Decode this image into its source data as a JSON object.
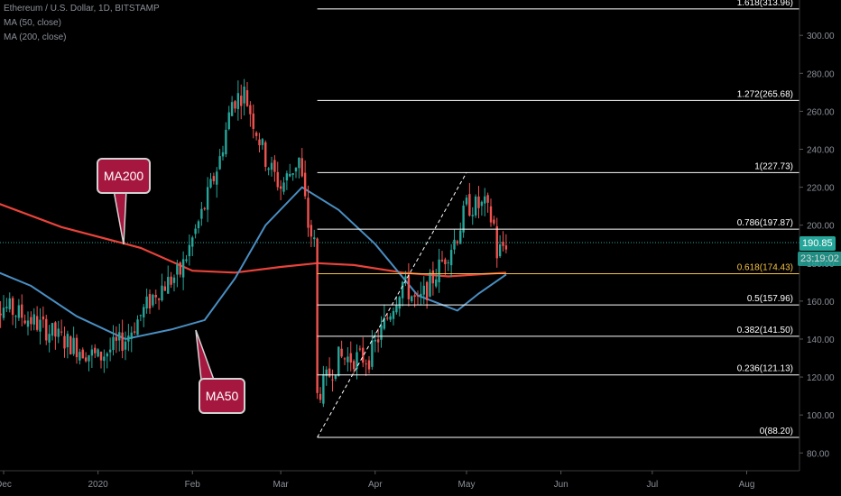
{
  "legend": {
    "symbol": "Ethereum / U.S. Dollar, 1D, BITSTAMP",
    "ma50": "MA (50, close)",
    "ma200": "MA (200, close)"
  },
  "callouts": {
    "ma200": "MA200",
    "ma50": "MA50"
  },
  "price_tags": {
    "last": "190.85",
    "countdown": "23:19:02"
  },
  "colors": {
    "background": "#000000",
    "candle_up": "#26a69a",
    "candle_down": "#ef5350",
    "ma50": "#4a8ec2",
    "ma200": "#e8433a",
    "fib_line": "#ffffff",
    "fib_highlight": "#f5c242",
    "last_price": "#26a69a",
    "callout_bg": "#a6173f"
  },
  "chart_data": {
    "type": "candlestick",
    "title": "Ethereum / U.S. Dollar, 1D, BITSTAMP",
    "y_axis": {
      "ticks": [
        80,
        100,
        120,
        140,
        160,
        180,
        200,
        220,
        240,
        260,
        280,
        300
      ],
      "tick_labels": [
        "80.00",
        "100.00",
        "120.00",
        "140.00",
        "160.00",
        "180.00",
        "200.00",
        "220.00",
        "240.00",
        "260.00",
        "280.00",
        "300.00"
      ],
      "ylim": [
        76,
        320
      ]
    },
    "x_axis": {
      "labels": [
        "Dec",
        "2020",
        "Feb",
        "Mar",
        "Apr",
        "May",
        "Jun",
        "Jul",
        "Aug"
      ],
      "dates": [
        "2019-12-01",
        "2020-01-01",
        "2020-02-01",
        "2020-03-01",
        "2020-04-01",
        "2020-05-01",
        "2020-06-01",
        "2020-07-01",
        "2020-08-01"
      ]
    },
    "fibonacci": [
      {
        "label": "0(88.20)",
        "value": 88.2
      },
      {
        "label": "0.236(121.13)",
        "value": 121.13
      },
      {
        "label": "0.382(141.50)",
        "value": 141.5
      },
      {
        "label": "0.5(157.96)",
        "value": 157.96
      },
      {
        "label": "0.618(174.43)",
        "value": 174.43,
        "highlight": true
      },
      {
        "label": "0.786(197.87)",
        "value": 197.87
      },
      {
        "label": "1(227.73)",
        "value": 227.73
      },
      {
        "label": "1.272(265.68)",
        "value": 265.68
      },
      {
        "label": "1.618(313.96)",
        "value": 313.96
      }
    ],
    "fib_start_date": "2020-03-13",
    "trend_line": [
      {
        "date": "2020-03-13",
        "price": 88.2
      },
      {
        "date": "2020-05-01",
        "price": 227.73
      }
    ],
    "last_price": 190.85,
    "ma50": [
      {
        "date": "2019-11-25",
        "price": 178
      },
      {
        "date": "2019-12-10",
        "price": 168
      },
      {
        "date": "2019-12-25",
        "price": 152
      },
      {
        "date": "2020-01-10",
        "price": 140
      },
      {
        "date": "2020-01-25",
        "price": 145
      },
      {
        "date": "2020-02-05",
        "price": 150
      },
      {
        "date": "2020-02-15",
        "price": 172
      },
      {
        "date": "2020-02-25",
        "price": 200
      },
      {
        "date": "2020-03-08",
        "price": 220
      },
      {
        "date": "2020-03-20",
        "price": 208
      },
      {
        "date": "2020-04-01",
        "price": 190
      },
      {
        "date": "2020-04-15",
        "price": 163
      },
      {
        "date": "2020-04-28",
        "price": 155
      },
      {
        "date": "2020-05-05",
        "price": 164
      },
      {
        "date": "2020-05-14",
        "price": 174
      }
    ],
    "ma200": [
      {
        "date": "2019-11-25",
        "price": 214
      },
      {
        "date": "2019-12-20",
        "price": 199
      },
      {
        "date": "2020-01-15",
        "price": 188
      },
      {
        "date": "2020-02-01",
        "price": 176
      },
      {
        "date": "2020-02-15",
        "price": 175
      },
      {
        "date": "2020-03-01",
        "price": 178
      },
      {
        "date": "2020-03-13",
        "price": 180
      },
      {
        "date": "2020-03-25",
        "price": 179
      },
      {
        "date": "2020-04-10",
        "price": 175
      },
      {
        "date": "2020-04-25",
        "price": 173
      },
      {
        "date": "2020-05-14",
        "price": 175
      }
    ],
    "price_path": [
      {
        "date": "2019-11-25",
        "price": 162
      },
      {
        "date": "2019-12-10",
        "price": 150
      },
      {
        "date": "2019-12-20",
        "price": 140
      },
      {
        "date": "2020-01-01",
        "price": 130
      },
      {
        "date": "2020-01-10",
        "price": 140
      },
      {
        "date": "2020-01-20",
        "price": 165
      },
      {
        "date": "2020-01-28",
        "price": 175
      },
      {
        "date": "2020-02-05",
        "price": 210
      },
      {
        "date": "2020-02-10",
        "price": 235
      },
      {
        "date": "2020-02-14",
        "price": 265
      },
      {
        "date": "2020-02-18",
        "price": 270
      },
      {
        "date": "2020-02-25",
        "price": 235
      },
      {
        "date": "2020-03-01",
        "price": 220
      },
      {
        "date": "2020-03-07",
        "price": 235
      },
      {
        "date": "2020-03-10",
        "price": 200
      },
      {
        "date": "2020-03-12",
        "price": 190
      },
      {
        "date": "2020-03-13",
        "price": 110
      },
      {
        "date": "2020-03-20",
        "price": 130
      },
      {
        "date": "2020-03-30",
        "price": 130
      },
      {
        "date": "2020-04-06",
        "price": 155
      },
      {
        "date": "2020-04-10",
        "price": 170
      },
      {
        "date": "2020-04-15",
        "price": 158
      },
      {
        "date": "2020-04-20",
        "price": 172
      },
      {
        "date": "2020-04-28",
        "price": 195
      },
      {
        "date": "2020-05-01",
        "price": 210
      },
      {
        "date": "2020-05-07",
        "price": 210
      },
      {
        "date": "2020-05-10",
        "price": 200
      },
      {
        "date": "2020-05-11",
        "price": 185
      },
      {
        "date": "2020-05-14",
        "price": 191
      }
    ]
  }
}
